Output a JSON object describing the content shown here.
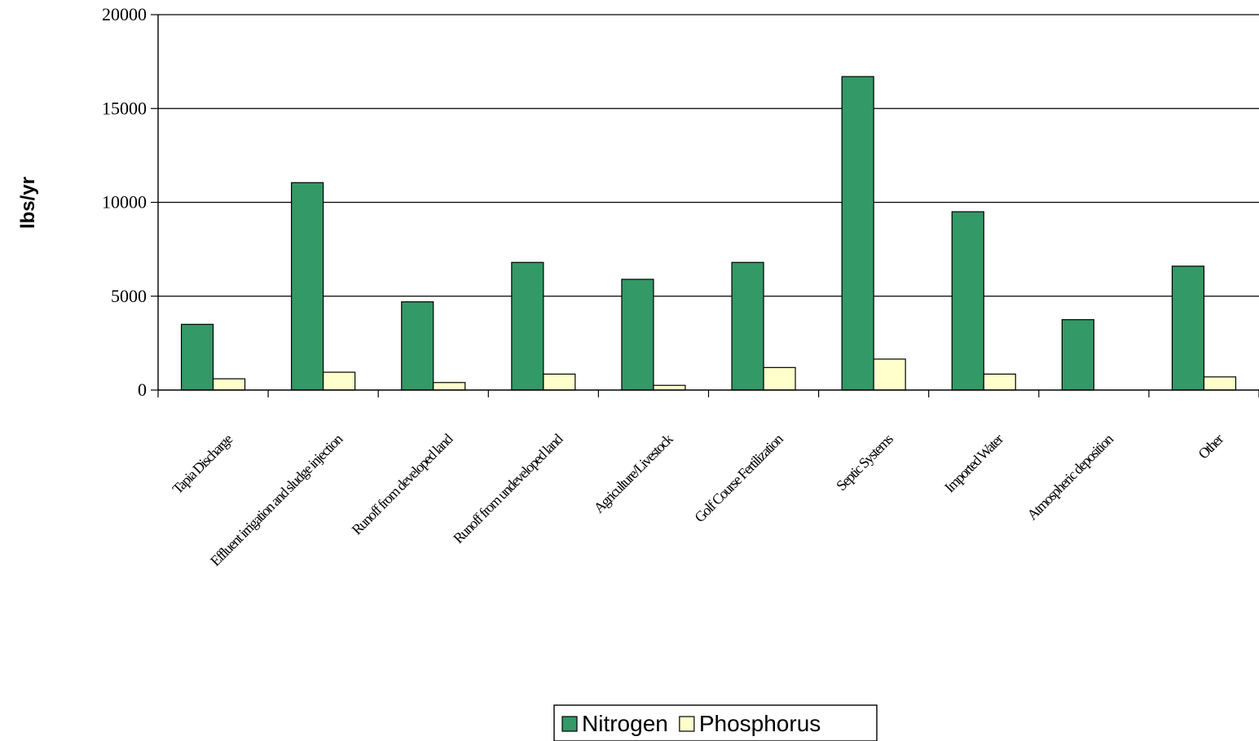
{
  "chart_data": {
    "type": "bar",
    "title": "",
    "xlabel": "",
    "ylabel": "lbs/yr",
    "ylim": [
      0,
      20000
    ],
    "yticks": [
      0,
      5000,
      10000,
      15000,
      20000
    ],
    "grid": true,
    "legend_position": "bottom-center",
    "categories": [
      "Tapia Discharge",
      "Effluent irrigation and sludge injection",
      "Runoff from developed land",
      "Runoff from undeveloped land",
      "Agriculture/Livestock",
      "Golf Course Fertilization",
      "Septic Systems",
      "Imported Water",
      "Atmospheric deposition",
      "Other"
    ],
    "series": [
      {
        "name": "Nitrogen",
        "color": "#339966",
        "values": [
          3500,
          11050,
          4700,
          6800,
          5900,
          6800,
          16700,
          9500,
          3750,
          6600
        ]
      },
      {
        "name": "Phosphorus",
        "color": "#FFFFCC",
        "values": [
          600,
          950,
          400,
          850,
          250,
          1200,
          1650,
          850,
          0,
          700
        ]
      }
    ]
  }
}
